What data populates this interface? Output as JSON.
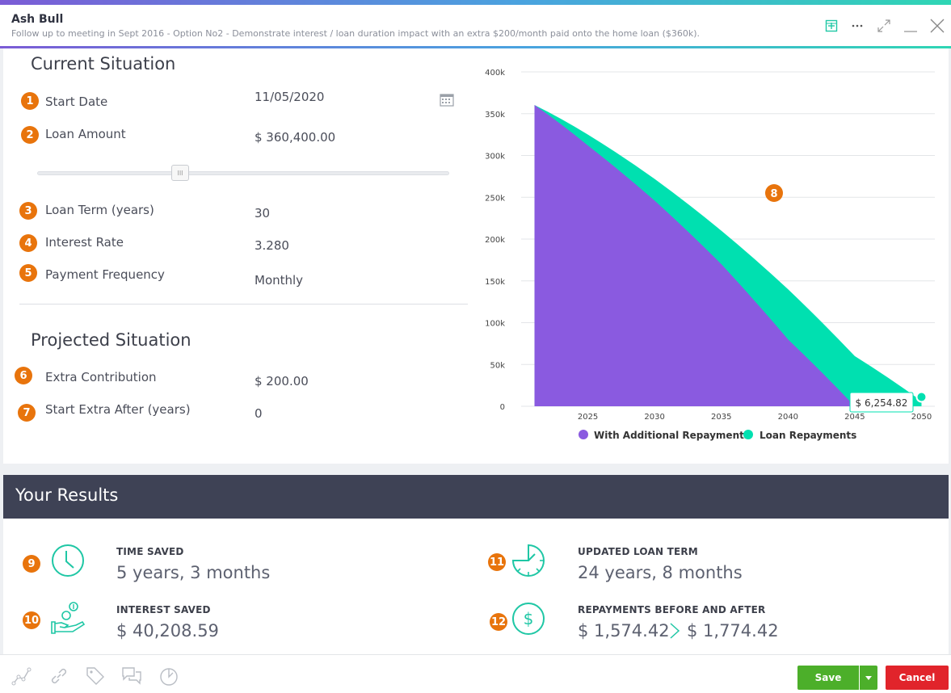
{
  "header": {
    "title": "Ash Bull",
    "subtitle": "Follow up to meeting in Sept 2016 - Option No2 - Demonstrate interest / loan duration impact with an extra $200/month paid onto the home loan ($360k)."
  },
  "current": {
    "title": "Current Situation",
    "fields": [
      {
        "badge": "1",
        "label": "Start Date",
        "value": "11/05/2020"
      },
      {
        "badge": "2",
        "label": "Loan Amount",
        "value": "$ 360,400.00"
      },
      {
        "badge": "3",
        "label": "Loan Term (years)",
        "value": "30"
      },
      {
        "badge": "4",
        "label": "Interest Rate",
        "value": "3.280"
      },
      {
        "badge": "5",
        "label": "Payment Frequency",
        "value": "Monthly"
      }
    ]
  },
  "projected": {
    "title": "Projected Situation",
    "fields": [
      {
        "badge": "6",
        "label": "Extra Contribution",
        "value": "$ 200.00"
      },
      {
        "badge": "7",
        "label": "Start Extra After (years)",
        "value": "0"
      }
    ]
  },
  "chart_badge": "8",
  "chart_data": {
    "type": "area",
    "yticks": [
      "0",
      "50k",
      "100k",
      "150k",
      "200k",
      "250k",
      "300k",
      "350k",
      "400k"
    ],
    "xticks": [
      "2025",
      "2030",
      "2035",
      "2040",
      "2045",
      "2050"
    ],
    "ylim": [
      0,
      400000
    ],
    "xlim": [
      2020,
      2051
    ],
    "series": [
      {
        "name": "Loan Repayments",
        "color": "#00e0b0",
        "x": [
          2021,
          2025,
          2030,
          2035,
          2040,
          2045,
          2050
        ],
        "y": [
          360400,
          325000,
          272000,
          210000,
          140000,
          60000,
          6254.82
        ]
      },
      {
        "name": "With Additional Repayments",
        "color": "#8a5ae0",
        "x": [
          2021,
          2025,
          2030,
          2035,
          2040,
          2045
        ],
        "y": [
          360400,
          312000,
          246000,
          170000,
          80000,
          0
        ]
      }
    ],
    "tooltip": "$ 6,254.82",
    "legend": [
      "With Additional Repayments",
      "Loan Repayments"
    ],
    "grid": true
  },
  "results": {
    "title": "Your Results",
    "items": [
      {
        "badge": "9",
        "label": "TIME SAVED",
        "value": "5 years, 3 months"
      },
      {
        "badge": "10",
        "label": "INTEREST SAVED",
        "value": "$ 40,208.59"
      },
      {
        "badge": "11",
        "label": "UPDATED LOAN TERM",
        "value": "24 years, 8 months"
      },
      {
        "badge": "12",
        "label": "REPAYMENTS BEFORE AND AFTER",
        "value_before": "$ 1,574.42",
        "value_after": "$ 1,774.42"
      }
    ]
  },
  "footer": {
    "save_label": "Save",
    "cancel_label": "Cancel"
  },
  "colors": {
    "accent_teal": "#00e0b0",
    "accent_purple": "#8a5ae0",
    "badge_orange": "#e8740c",
    "save_green": "#4caf2a",
    "cancel_red": "#e1242b"
  }
}
